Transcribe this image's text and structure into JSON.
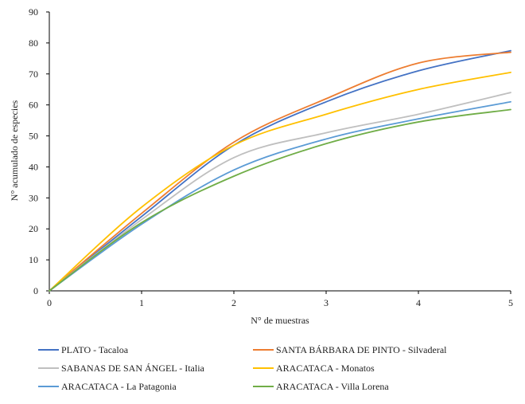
{
  "chart_data": {
    "type": "line",
    "title": "",
    "xlabel": "N° de muestras",
    "ylabel": "N° acumulado de especies",
    "xlim": [
      0,
      5
    ],
    "ylim": [
      0,
      90
    ],
    "x_ticks": [
      "0",
      "1",
      "2",
      "3",
      "4",
      "5"
    ],
    "y_ticks": [
      "0",
      "10",
      "20",
      "30",
      "40",
      "50",
      "60",
      "70",
      "80",
      "90"
    ],
    "grid": false,
    "legend_position": "bottom",
    "x": [
      0,
      1,
      2,
      3,
      4,
      5
    ],
    "series": [
      {
        "name": "PLATO - Tacaloa",
        "color": "#4472c4",
        "values": [
          0,
          24,
          47,
          61,
          71,
          77.5
        ]
      },
      {
        "name": "SANTA BÁRBARA DE PINTO - Silvaderal",
        "color": "#ed7d31",
        "values": [
          0,
          25,
          48,
          62,
          73.5,
          77
        ]
      },
      {
        "name": "SABANAS DE SAN ÁNGEL - Italia",
        "color": "#bfbfbf",
        "values": [
          0,
          23,
          43,
          51,
          57,
          64
        ]
      },
      {
        "name": "ARACATACA - Monatos",
        "color": "#ffc000",
        "values": [
          0,
          27,
          47,
          57,
          65,
          70.5
        ]
      },
      {
        "name": "ARACATACA - La Patagonia",
        "color": "#5b9bd5",
        "values": [
          0,
          21.5,
          39,
          49,
          55.5,
          61
        ]
      },
      {
        "name": "ARACATACA - Villa Lorena",
        "color": "#70ad47",
        "values": [
          0,
          22,
          37,
          47.5,
          54.5,
          58.5
        ]
      }
    ]
  }
}
